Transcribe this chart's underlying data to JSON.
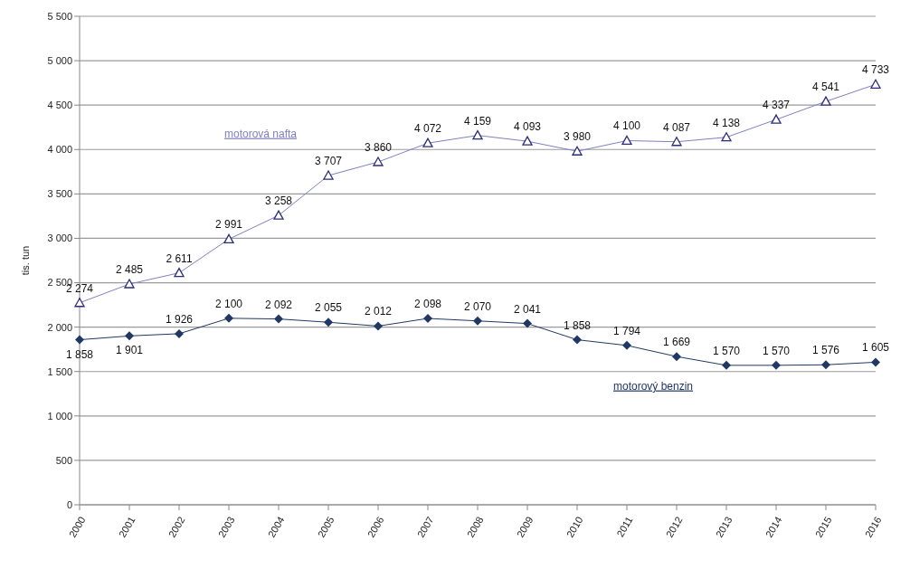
{
  "chart_data": {
    "type": "line",
    "ylabel": "tis. tun",
    "categories": [
      "2000",
      "2001",
      "2002",
      "2003",
      "2004",
      "2005",
      "2006",
      "2007",
      "2008",
      "2009",
      "2010",
      "2011",
      "2012",
      "2013",
      "2014",
      "2015",
      "2016"
    ],
    "series": [
      {
        "name": "motorová nafta",
        "color": "#7f7fc4",
        "marker": "triangle",
        "values": [
          2274,
          2485,
          2611,
          2991,
          3258,
          3707,
          3860,
          4072,
          4159,
          4093,
          3980,
          4100,
          4087,
          4138,
          4337,
          4541,
          4733
        ],
        "value_labels": [
          "2 274",
          "2 485",
          "2 611",
          "2 991",
          "3 258",
          "3 707",
          "3 860",
          "4 072",
          "4 159",
          "4 093",
          "3 980",
          "4 100",
          "4 087",
          "4 138",
          "4 337",
          "4 541",
          "4 733"
        ]
      },
      {
        "name": "motorový benzin",
        "color": "#1f3864",
        "marker": "diamond",
        "values": [
          1858,
          1901,
          1926,
          2100,
          2092,
          2055,
          2012,
          2098,
          2070,
          2041,
          1858,
          1794,
          1669,
          1570,
          1570,
          1576,
          1605
        ],
        "value_labels": [
          "1 858",
          "1 901",
          "1 926",
          "2 100",
          "2 092",
          "2 055",
          "2 012",
          "2 098",
          "2 070",
          "2 041",
          "1 858",
          "1 794",
          "1 669",
          "1 570",
          "1 570",
          "1 576",
          "1 605"
        ]
      }
    ],
    "ylim": [
      0,
      5500
    ],
    "yticks": [
      0,
      500,
      {
        "value": 1000,
        "label": "1 000"
      },
      {
        "value": 1500,
        "label": "1 500"
      },
      {
        "value": 2000,
        "label": "2 000"
      },
      {
        "value": 2500,
        "label": "2 500"
      },
      {
        "value": 3000,
        "label": "3 000"
      },
      {
        "value": 3500,
        "label": "3 500"
      },
      {
        "value": 4000,
        "label": "4 000"
      },
      {
        "value": 4500,
        "label": "4 500"
      },
      {
        "value": 5000,
        "label": "5 000"
      },
      {
        "value": 5500,
        "label": "5 500"
      }
    ],
    "grid": "y",
    "legend": false,
    "line_style": "solid"
  }
}
